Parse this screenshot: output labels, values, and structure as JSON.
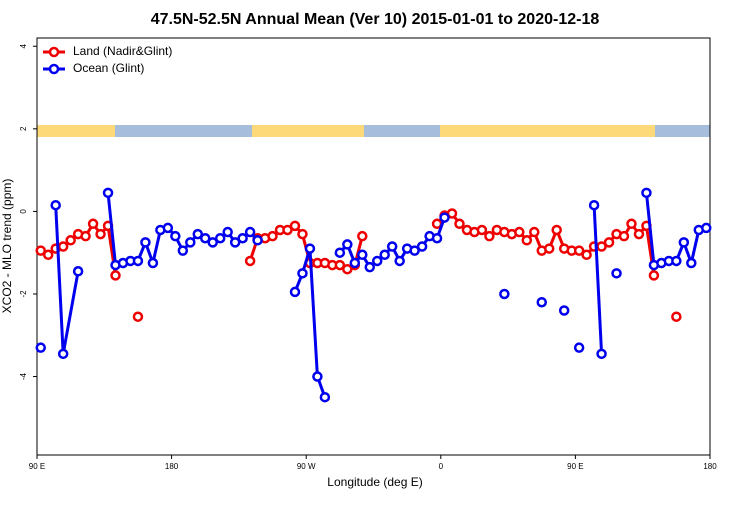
{
  "chart_data": {
    "type": "line",
    "title": "47.5N-52.5N Annual Mean (Ver 10)   2015-01-01 to 2020-12-18",
    "x_label": "Longitude (deg E)",
    "y_label": "XCO2 - MLO trend (ppm)",
    "xlim": [
      90,
      540
    ],
    "xticks": [
      {
        "value": 90,
        "label": "90 E"
      },
      {
        "value": 180,
        "label": "180"
      },
      {
        "value": 270,
        "label": "90 W"
      },
      {
        "value": 360,
        "label": "0"
      },
      {
        "value": 450,
        "label": "90 E"
      },
      {
        "value": 540,
        "label": "180"
      }
    ],
    "ylim": [
      -5.9,
      4.2
    ],
    "yticks": [
      -4,
      -2,
      0,
      2,
      4
    ],
    "legend": "top-left",
    "series": [
      {
        "name": "Land (Nadir&Glint)",
        "color": "#ee0000",
        "x": [
          92.5,
          97.5,
          102.5,
          107.5,
          112.5,
          117.5,
          122.5,
          127.5,
          132.5,
          137.5,
          142.5,
          147.5,
          157.5,
          162.5,
          232.5,
          237.5,
          242.5,
          247.5,
          252.5,
          257.5,
          262.5,
          267.5,
          272.5,
          277.5,
          282.5,
          287.5,
          292.5,
          297.5,
          302.5,
          307.5,
          312.5,
          357.5,
          362.5,
          367.5,
          372.5,
          377.5,
          382.5,
          387.5,
          392.5,
          397.5,
          402.5,
          407.5,
          412.5,
          417.5,
          422.5,
          427.5,
          432.5,
          437.5,
          442.5,
          447.5,
          452.5,
          457.5,
          462.5,
          467.5,
          472.5,
          477.5,
          482.5,
          487.5,
          492.5,
          497.5,
          502.5,
          507.5,
          517.5
        ],
        "values": [
          -0.95,
          -1.05,
          -0.9,
          -0.85,
          -0.7,
          -0.55,
          -0.6,
          -0.3,
          -0.55,
          -0.35,
          -1.55,
          null,
          -2.55,
          null,
          -1.2,
          -0.65,
          -0.65,
          -0.6,
          -0.45,
          -0.45,
          -0.35,
          -0.55,
          -1.25,
          -1.25,
          -1.25,
          -1.3,
          -1.3,
          -1.4,
          -1.3,
          -0.6,
          null,
          -0.3,
          -0.1,
          -0.05,
          -0.3,
          -0.45,
          -0.5,
          -0.45,
          -0.6,
          -0.45,
          -0.5,
          -0.55,
          -0.5,
          -0.7,
          -0.5,
          -0.95,
          -0.9,
          -0.45,
          -0.9,
          -0.95,
          -0.95,
          -1.05,
          -0.85,
          -0.85,
          -0.75,
          -0.55,
          -0.6,
          -0.3,
          -0.55,
          -0.35,
          -1.55,
          null,
          -2.55
        ]
      },
      {
        "name": "Ocean (Glint)",
        "color": "#0000ee",
        "x": [
          92.5,
          97.5,
          102.5,
          107.5,
          117.5,
          122.5,
          137.5,
          142.5,
          147.5,
          152.5,
          157.5,
          162.5,
          167.5,
          172.5,
          177.5,
          182.5,
          187.5,
          192.5,
          197.5,
          202.5,
          207.5,
          212.5,
          217.5,
          222.5,
          227.5,
          232.5,
          237.5,
          242.5,
          262.5,
          267.5,
          272.5,
          277.5,
          282.5,
          287.5,
          292.5,
          297.5,
          302.5,
          307.5,
          312.5,
          317.5,
          322.5,
          327.5,
          332.5,
          337.5,
          342.5,
          347.5,
          352.5,
          357.5,
          362.5,
          367.5,
          402.5,
          407.5,
          427.5,
          432.5,
          442.5,
          447.5,
          452.5,
          457.5,
          462.5,
          467.5,
          472.5,
          477.5,
          482.5,
          497.5,
          502.5,
          507.5,
          512.5,
          517.5,
          522.5,
          527.5,
          532.5,
          537.5
        ],
        "values": [
          -3.3,
          null,
          0.15,
          -3.45,
          -1.45,
          null,
          0.45,
          -1.3,
          -1.25,
          -1.2,
          -1.2,
          -0.75,
          -1.25,
          -0.45,
          -0.4,
          -0.6,
          -0.95,
          -0.75,
          -0.55,
          -0.65,
          -0.75,
          -0.65,
          -0.5,
          -0.75,
          -0.65,
          -0.5,
          -0.7,
          null,
          -1.95,
          -1.5,
          -0.9,
          -4.0,
          -4.5,
          null,
          -1.0,
          -0.8,
          -1.25,
          -1.05,
          -1.35,
          -1.2,
          -1.05,
          -0.85,
          -1.2,
          -0.9,
          -0.95,
          -0.85,
          -0.6,
          -0.65,
          -0.15,
          null,
          -2.0,
          null,
          -2.2,
          null,
          -2.4,
          null,
          -3.3,
          null,
          0.15,
          -3.45,
          null,
          -1.5,
          null,
          0.45,
          -1.3,
          -1.25,
          -1.2,
          -1.2,
          -0.75,
          -1.25,
          -0.45,
          -0.4
        ]
      }
    ]
  }
}
